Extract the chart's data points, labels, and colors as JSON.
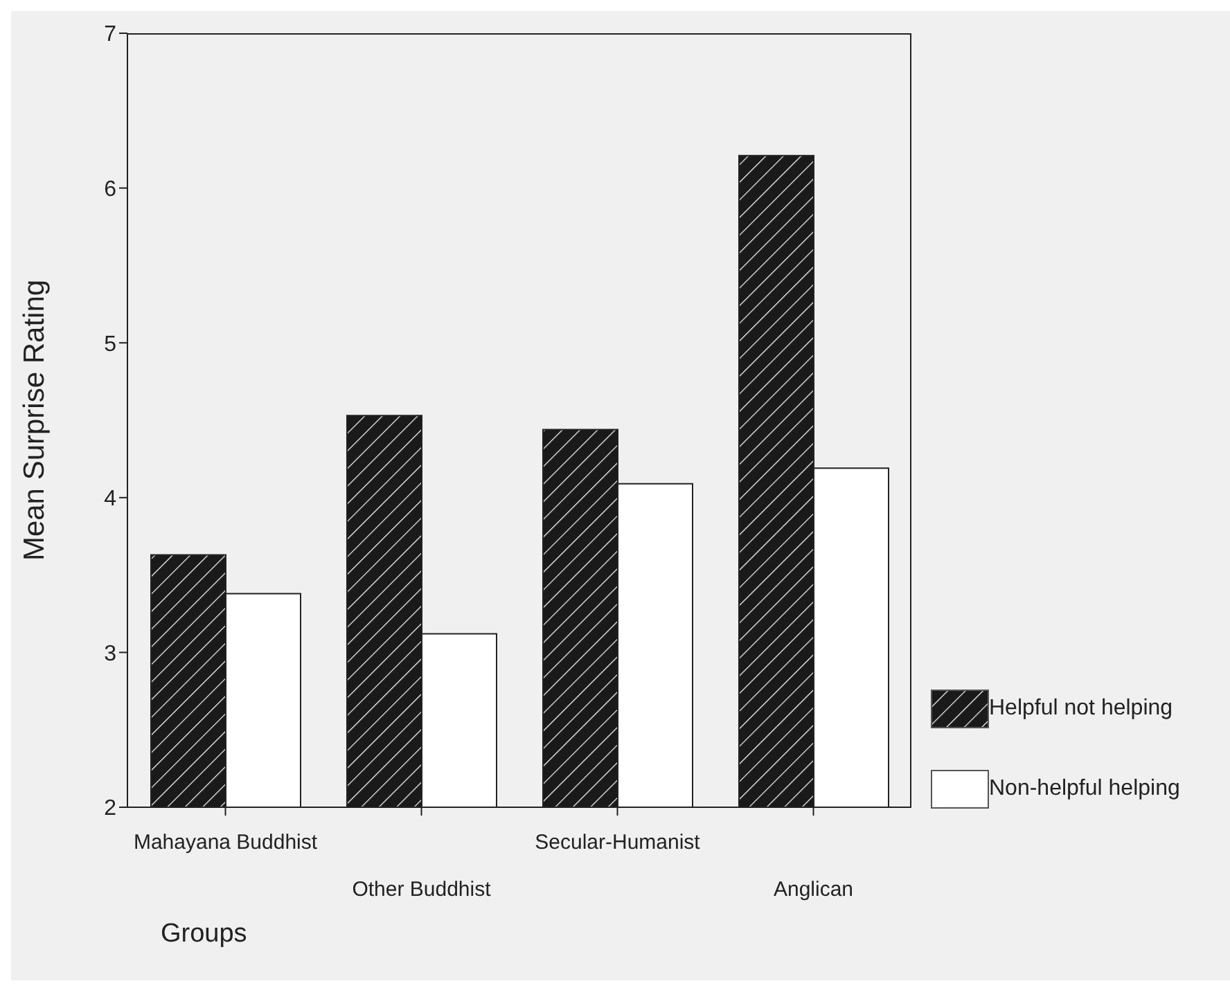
{
  "chart_data": {
    "type": "bar",
    "xlabel": "Groups",
    "ylabel": "Mean Surprise Rating",
    "categories": [
      "Mahayana Buddhist",
      "Other Buddhist",
      "Secular-Humanist",
      "Anglican"
    ],
    "series": [
      {
        "name": "Helpful not helping",
        "color": "#1a1a1a",
        "values": [
          3.63,
          4.53,
          4.44,
          6.21
        ]
      },
      {
        "name": "Non-helpful helping",
        "color": "#ffffff",
        "values": [
          3.38,
          3.12,
          4.09,
          4.19
        ]
      }
    ],
    "ylim": [
      2,
      7
    ],
    "yticks": [
      2,
      3,
      4,
      5,
      6,
      7
    ],
    "grid": false,
    "legend": "right"
  }
}
